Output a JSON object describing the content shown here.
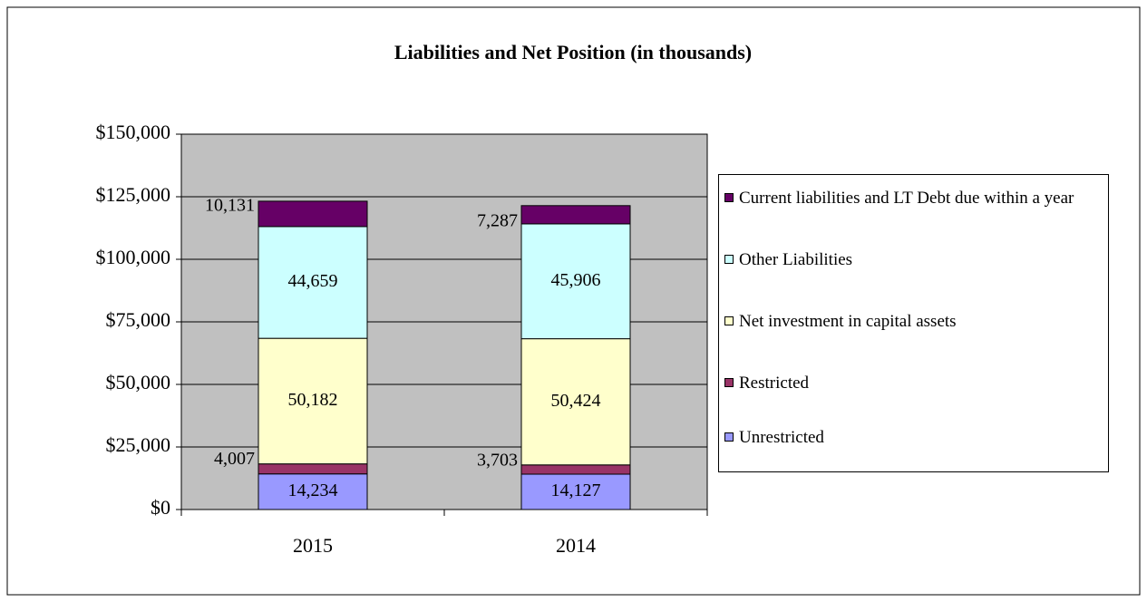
{
  "chart_data": {
    "type": "stacked-bar",
    "title": "Liabilities and Net Position (in thousands)",
    "categories": [
      "2015",
      "2014"
    ],
    "series": [
      {
        "name": "Unrestricted",
        "color": "#9999ff",
        "values": [
          14234,
          14127
        ],
        "value_labels": [
          "14,234",
          "14,127"
        ]
      },
      {
        "name": "Restricted",
        "color": "#993366",
        "values": [
          4007,
          3703
        ],
        "value_labels": [
          "4,007",
          "3,703"
        ]
      },
      {
        "name": "Net investment in capital assets",
        "color": "#ffffcc",
        "values": [
          50182,
          50424
        ],
        "value_labels": [
          "50,182",
          "50,424"
        ]
      },
      {
        "name": "Other Liabilities",
        "color": "#ccffff",
        "values": [
          44659,
          45906
        ],
        "value_labels": [
          "44,659",
          "45,906"
        ]
      },
      {
        "name": "Current liabilities and LT Debt due within a year",
        "color": "#660066",
        "values": [
          10131,
          7287
        ],
        "value_labels": [
          "10,131",
          "7,287"
        ]
      }
    ],
    "ylim": [
      0,
      150000
    ],
    "yticks": [
      {
        "value": 0,
        "label": "$0"
      },
      {
        "value": 25000,
        "label": "$25,000"
      },
      {
        "value": 50000,
        "label": "$50,000"
      },
      {
        "value": 75000,
        "label": "$75,000"
      },
      {
        "value": 100000,
        "label": "$100,000"
      },
      {
        "value": 125000,
        "label": "$125,000"
      },
      {
        "value": 150000,
        "label": "$150,000"
      }
    ],
    "grid": true,
    "legend": "right"
  }
}
